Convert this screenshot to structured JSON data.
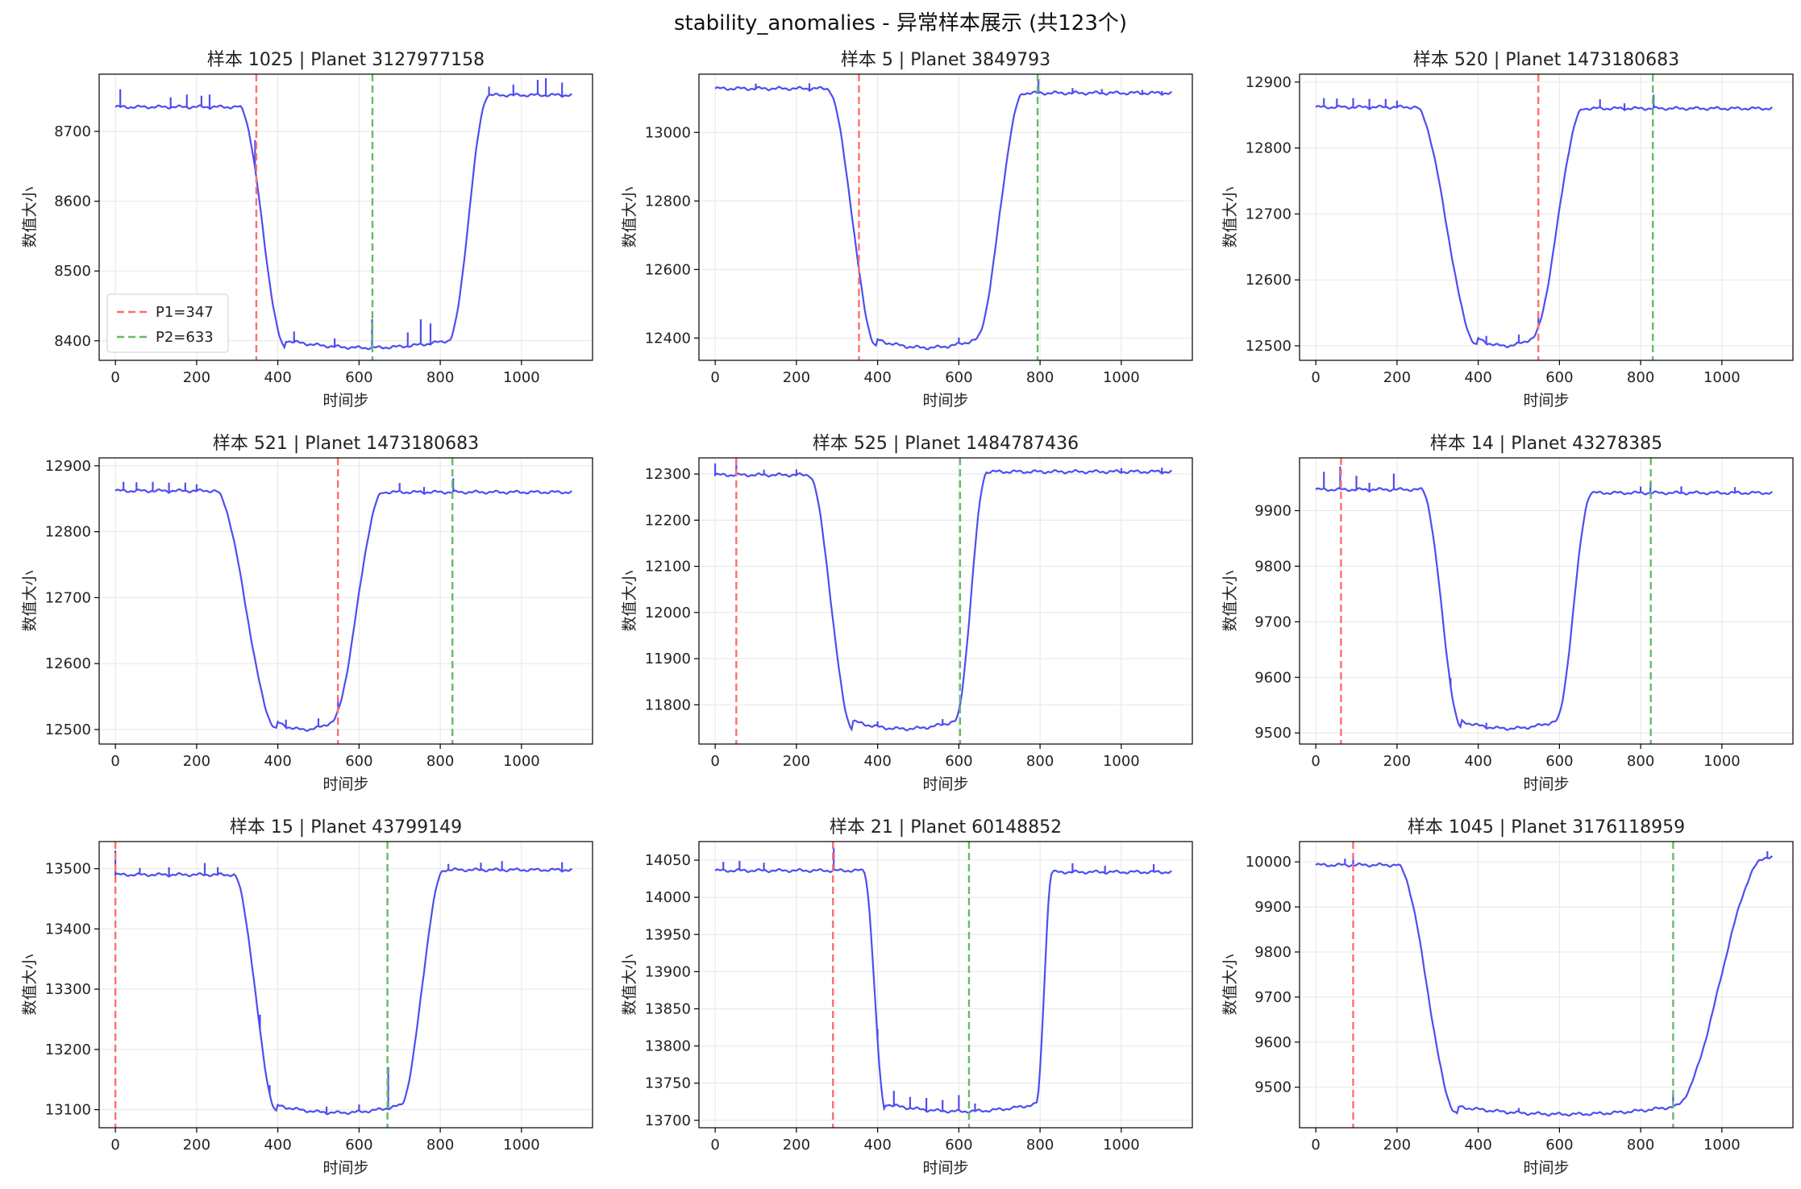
{
  "figure": {
    "suptitle": "stability_anomalies - 异常样本展示 (共123个)",
    "colors": {
      "series": "#3b3bef",
      "p1": "#ff6f6f",
      "p2": "#66bb66",
      "grid": "#e6e6e6",
      "axis": "#000000"
    },
    "legend_location": "lower-left"
  },
  "chart_data": [
    {
      "type": "line",
      "title": "样本 1025 | Planet 3127977158",
      "xlabel": "时间步",
      "ylabel": "数值大小",
      "xlim": [
        -40,
        1175
      ],
      "ylim": [
        8372,
        8782
      ],
      "xticks": [
        0,
        200,
        400,
        600,
        800,
        1000
      ],
      "yticks": [
        8400,
        8500,
        8600,
        8700
      ],
      "grid": true,
      "p1": 347,
      "p2": 633,
      "legend": [
        "P1=347",
        "P2=633"
      ],
      "baseline_left": 8735,
      "baseline_right": 8752,
      "trough": 8390,
      "fall_start": 305,
      "trough_start": 420,
      "trough_end": 820,
      "rise_end": 920,
      "spikes": [
        [
          10,
          25
        ],
        [
          135,
          15
        ],
        [
          175,
          18
        ],
        [
          210,
          15
        ],
        [
          230,
          20
        ],
        [
          345,
          40
        ],
        [
          440,
          15
        ],
        [
          540,
          12
        ],
        [
          633,
          40
        ],
        [
          720,
          20
        ],
        [
          750,
          35
        ],
        [
          775,
          30
        ],
        [
          920,
          12
        ],
        [
          980,
          15
        ],
        [
          1040,
          20
        ],
        [
          1060,
          25
        ],
        [
          1100,
          20
        ]
      ]
    },
    {
      "type": "line",
      "title": "样本 5 | Planet 3849793",
      "xlabel": "时间步",
      "ylabel": "数值大小",
      "xlim": [
        -40,
        1175
      ],
      "ylim": [
        12335,
        13170
      ],
      "xticks": [
        0,
        200,
        400,
        600,
        800,
        1000
      ],
      "yticks": [
        12400,
        12600,
        12800,
        13000
      ],
      "grid": true,
      "p1": 354,
      "p2": 794,
      "baseline_left": 13128,
      "baseline_right": 13115,
      "trough": 12372,
      "fall_start": 275,
      "trough_start": 400,
      "trough_end": 640,
      "rise_end": 760,
      "spikes": [
        [
          100,
          15
        ],
        [
          230,
          20
        ],
        [
          350,
          15
        ],
        [
          600,
          15
        ],
        [
          794,
          40
        ],
        [
          880,
          15
        ],
        [
          950,
          12
        ],
        [
          1050,
          12
        ],
        [
          1100,
          10
        ]
      ]
    },
    {
      "type": "line",
      "title": "样本 520 | Planet 1473180683",
      "xlabel": "时间步",
      "ylabel": "数值大小",
      "xlim": [
        -40,
        1175
      ],
      "ylim": [
        12478,
        12912
      ],
      "xticks": [
        0,
        200,
        400,
        600,
        800,
        1000
      ],
      "yticks": [
        12500,
        12600,
        12700,
        12800,
        12900
      ],
      "grid": true,
      "p1": 548,
      "p2": 830,
      "baseline_left": 12862,
      "baseline_right": 12860,
      "trough": 12500,
      "fall_start": 245,
      "trough_start": 400,
      "trough_end": 530,
      "rise_end": 660,
      "spikes": [
        [
          20,
          12
        ],
        [
          50,
          12
        ],
        [
          90,
          14
        ],
        [
          130,
          15
        ],
        [
          170,
          12
        ],
        [
          200,
          10
        ],
        [
          420,
          12
        ],
        [
          500,
          12
        ],
        [
          548,
          15
        ],
        [
          700,
          12
        ],
        [
          760,
          10
        ],
        [
          830,
          20
        ]
      ]
    },
    {
      "type": "line",
      "title": "样本 521 | Planet 1473180683",
      "xlabel": "时间步",
      "ylabel": "数值大小",
      "xlim": [
        -40,
        1175
      ],
      "ylim": [
        12478,
        12912
      ],
      "xticks": [
        0,
        200,
        400,
        600,
        800,
        1000
      ],
      "yticks": [
        12500,
        12600,
        12700,
        12800,
        12900
      ],
      "grid": true,
      "p1": 548,
      "p2": 830,
      "baseline_left": 12862,
      "baseline_right": 12860,
      "trough": 12500,
      "fall_start": 245,
      "trough_start": 400,
      "trough_end": 530,
      "rise_end": 660,
      "spikes": [
        [
          20,
          12
        ],
        [
          50,
          12
        ],
        [
          90,
          14
        ],
        [
          130,
          15
        ],
        [
          170,
          12
        ],
        [
          200,
          10
        ],
        [
          420,
          12
        ],
        [
          500,
          12
        ],
        [
          548,
          15
        ],
        [
          700,
          12
        ],
        [
          760,
          10
        ],
        [
          830,
          20
        ]
      ]
    },
    {
      "type": "line",
      "title": "样本 525 | Planet 1484787436",
      "xlabel": "时间步",
      "ylabel": "数值大小",
      "xlim": [
        -40,
        1175
      ],
      "ylim": [
        11715,
        12335
      ],
      "xticks": [
        0,
        200,
        400,
        600,
        800,
        1000
      ],
      "yticks": [
        11800,
        11900,
        12000,
        12100,
        12200,
        12300
      ],
      "grid": true,
      "p1": 52,
      "p2": 603,
      "baseline_left": 12298,
      "baseline_right": 12305,
      "trough": 11748,
      "fall_start": 230,
      "trough_start": 340,
      "trough_end": 590,
      "rise_end": 670,
      "spikes": [
        [
          0,
          25
        ],
        [
          52,
          55
        ],
        [
          120,
          10
        ],
        [
          200,
          12
        ],
        [
          400,
          10
        ],
        [
          560,
          12
        ],
        [
          1000,
          10
        ],
        [
          1100,
          12
        ]
      ]
    },
    {
      "type": "line",
      "title": "样本 14 | Planet 43278385",
      "xlabel": "时间步",
      "ylabel": "数值大小",
      "xlim": [
        -40,
        1175
      ],
      "ylim": [
        9480,
        9995
      ],
      "xticks": [
        0,
        200,
        400,
        600,
        800,
        1000
      ],
      "yticks": [
        9500,
        9600,
        9700,
        9800,
        9900
      ],
      "grid": true,
      "p1": 62,
      "p2": 825,
      "baseline_left": 9938,
      "baseline_right": 9932,
      "trough": 9508,
      "fall_start": 260,
      "trough_start": 360,
      "trough_end": 590,
      "rise_end": 680,
      "spikes": [
        [
          60,
          40
        ],
        [
          20,
          30
        ],
        [
          100,
          25
        ],
        [
          130,
          15
        ],
        [
          190,
          28
        ],
        [
          330,
          15
        ],
        [
          420,
          10
        ],
        [
          800,
          10
        ],
        [
          825,
          20
        ],
        [
          900,
          12
        ],
        [
          1030,
          10
        ]
      ]
    },
    {
      "type": "line",
      "title": "样本 15 | Planet 43799149",
      "xlabel": "时间步",
      "ylabel": "数值大小",
      "xlim": [
        -40,
        1175
      ],
      "ylim": [
        13070,
        13545
      ],
      "xticks": [
        0,
        200,
        400,
        600,
        800,
        1000
      ],
      "yticks": [
        13100,
        13200,
        13300,
        13400,
        13500
      ],
      "grid": true,
      "p1": 0,
      "p2": 670,
      "baseline_left": 13490,
      "baseline_right": 13498,
      "trough": 13095,
      "fall_start": 290,
      "trough_start": 400,
      "trough_end": 700,
      "rise_end": 810,
      "spikes": [
        [
          0,
          40
        ],
        [
          60,
          10
        ],
        [
          130,
          15
        ],
        [
          220,
          20
        ],
        [
          250,
          12
        ],
        [
          355,
          25
        ],
        [
          380,
          15
        ],
        [
          520,
          12
        ],
        [
          600,
          10
        ],
        [
          670,
          70
        ],
        [
          820,
          10
        ],
        [
          900,
          12
        ],
        [
          950,
          15
        ],
        [
          1100,
          15
        ]
      ]
    },
    {
      "type": "line",
      "title": "样本 21 | Planet 60148852",
      "xlabel": "时间步",
      "ylabel": "数值大小",
      "xlim": [
        -40,
        1175
      ],
      "ylim": [
        13690,
        14075
      ],
      "xticks": [
        0,
        200,
        400,
        600,
        800,
        1000
      ],
      "yticks": [
        13700,
        13750,
        13800,
        13850,
        13900,
        13950,
        14000,
        14050
      ],
      "grid": true,
      "p1": 290,
      "p2": 625,
      "baseline_left": 14036,
      "baseline_right": 14034,
      "trough": 13712,
      "fall_start": 365,
      "trough_start": 420,
      "trough_end": 790,
      "rise_end": 830,
      "spikes": [
        [
          20,
          10
        ],
        [
          60,
          12
        ],
        [
          120,
          10
        ],
        [
          290,
          30
        ],
        [
          400,
          15
        ],
        [
          440,
          20
        ],
        [
          480,
          15
        ],
        [
          520,
          18
        ],
        [
          560,
          15
        ],
        [
          600,
          20
        ],
        [
          640,
          10
        ],
        [
          880,
          12
        ],
        [
          960,
          10
        ],
        [
          1080,
          10
        ]
      ]
    },
    {
      "type": "line",
      "title": "样本 1045 | Planet 3176118959",
      "xlabel": "时间步",
      "ylabel": "数值大小",
      "xlim": [
        -40,
        1175
      ],
      "ylim": [
        9410,
        10045
      ],
      "xticks": [
        0,
        200,
        400,
        600,
        800,
        1000
      ],
      "yticks": [
        9500,
        9600,
        9700,
        9800,
        9900,
        10000
      ],
      "grid": true,
      "p1": 92,
      "p2": 880,
      "baseline_left": 9993,
      "baseline_right": 10010,
      "trough": 9440,
      "fall_start": 200,
      "trough_start": 350,
      "trough_end": 880,
      "rise_end": 1110,
      "spikes": [
        [
          70,
          12
        ],
        [
          92,
          20
        ],
        [
          500,
          8
        ],
        [
          880,
          30
        ],
        [
          1110,
          15
        ]
      ]
    }
  ]
}
